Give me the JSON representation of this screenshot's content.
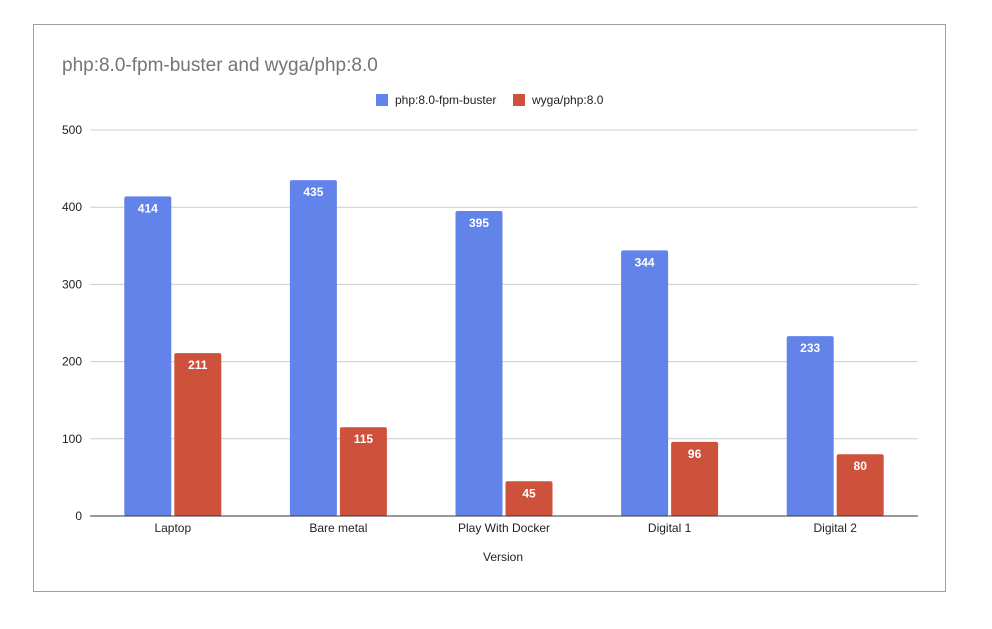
{
  "chart_data": {
    "type": "bar",
    "title": "php:8.0-fpm-buster and wyga/php:8.0",
    "xlabel": "Version",
    "ylabel": "",
    "ylim": [
      0,
      500
    ],
    "yticks": [
      0,
      100,
      200,
      300,
      400,
      500
    ],
    "categories": [
      "Laptop",
      "Bare metal",
      "Play With Docker",
      "Digital 1",
      "Digital 2"
    ],
    "series": [
      {
        "name": "php:8.0-fpm-buster",
        "color": "#6283ea",
        "values": [
          414,
          435,
          395,
          344,
          233
        ]
      },
      {
        "name": "wyga/php:8.0",
        "color": "#cd513b",
        "values": [
          211,
          115,
          45,
          96,
          80
        ]
      }
    ],
    "legend_position": "top",
    "grid": true,
    "data_labels": true
  }
}
